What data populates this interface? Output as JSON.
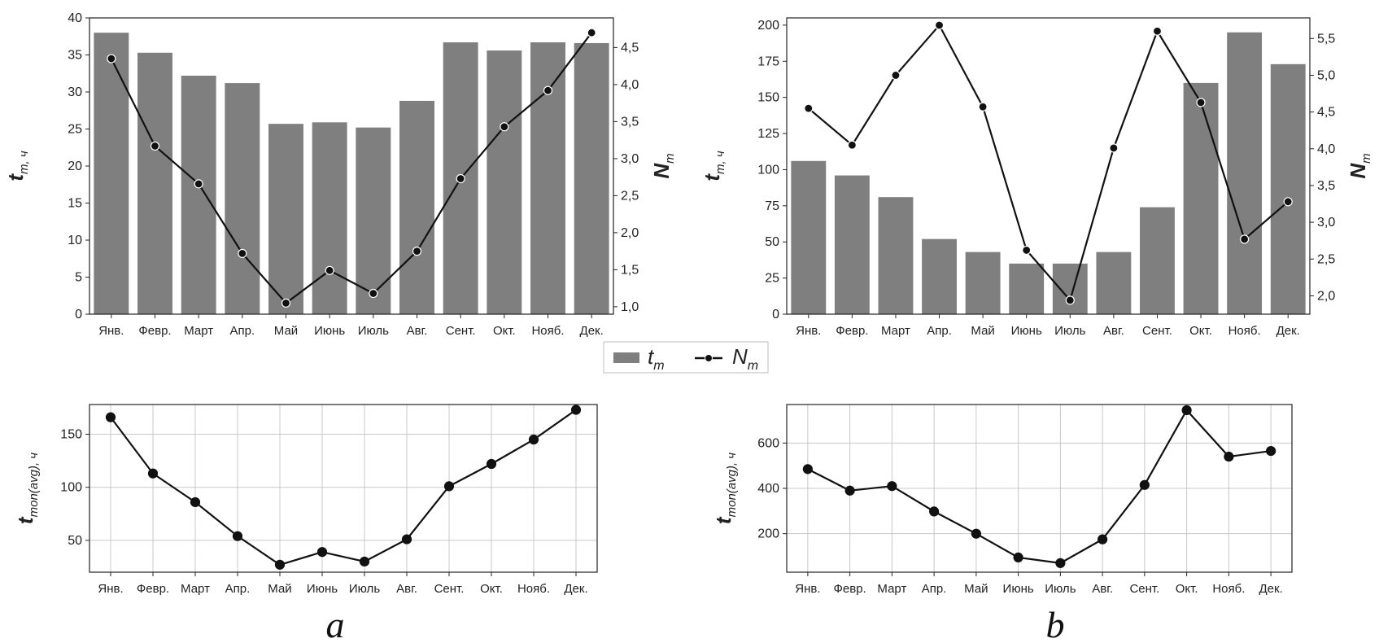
{
  "categories": [
    "Янв.",
    "Февр.",
    "Март",
    "Апр.",
    "Май",
    "Июнь",
    "Июль",
    "Авг.",
    "Сент.",
    "Окт.",
    "Нояб.",
    "Дек."
  ],
  "legend": {
    "bar_label": "t",
    "bar_sub": "m",
    "line_label": "N",
    "line_sub": "m"
  },
  "panel_letters": {
    "a": "a",
    "b": "b"
  },
  "colors": {
    "bar": "#7f7f7f",
    "line": "#111111",
    "grid": "#c8c8c8",
    "marker_edge": "#ffffff"
  },
  "chart_data": [
    {
      "id": "a-top",
      "type": "bar",
      "title": "",
      "ylabel": "t",
      "ylabel_sub": "m, ч",
      "y2label": "N",
      "y2label_sub": "m",
      "ylim": [
        0,
        40
      ],
      "yticks": [
        "0",
        "5",
        "10",
        "15",
        "20",
        "25",
        "30",
        "35",
        "40"
      ],
      "y2lim": [
        0.9,
        4.9
      ],
      "y2ticks": [
        "1,0",
        "1,5",
        "2,0",
        "2,5",
        "3,0",
        "3,5",
        "4,0",
        "4,5"
      ],
      "series": [
        {
          "name": "t_m",
          "type": "bar",
          "values": [
            38,
            35.3,
            32.2,
            31.2,
            25.7,
            25.9,
            25.2,
            28.8,
            36.7,
            35.6,
            36.7,
            36.6
          ]
        },
        {
          "name": "N_m",
          "type": "line",
          "values": [
            4.35,
            3.17,
            2.66,
            1.72,
            1.05,
            1.49,
            1.18,
            1.75,
            2.73,
            3.43,
            3.92,
            4.7
          ]
        }
      ],
      "grid": false
    },
    {
      "id": "b-top",
      "type": "bar",
      "title": "",
      "ylabel": "t",
      "ylabel_sub": "m, ч",
      "y2label": "N",
      "y2label_sub": "m",
      "ylim": [
        0,
        205
      ],
      "yticks": [
        "0",
        "25",
        "50",
        "75",
        "100",
        "125",
        "150",
        "175",
        "200"
      ],
      "y2lim": [
        1.75,
        5.78
      ],
      "y2ticks": [
        "2,0",
        "2,5",
        "3,0",
        "3,5",
        "4,0",
        "4,5",
        "5,0",
        "5,5"
      ],
      "series": [
        {
          "name": "t_m",
          "type": "bar",
          "values": [
            106,
            96,
            81,
            52,
            43,
            35,
            35,
            43,
            74,
            160,
            195,
            173
          ]
        },
        {
          "name": "N_m",
          "type": "line",
          "values": [
            4.55,
            4.05,
            5.0,
            5.68,
            4.57,
            2.62,
            1.94,
            4.01,
            5.6,
            4.63,
            2.77,
            3.28
          ]
        }
      ],
      "grid": false
    },
    {
      "id": "a-bottom",
      "type": "line",
      "title": "",
      "ylabel": "t",
      "ylabel_sub": "mon(avg), ч",
      "ylim": [
        20,
        178
      ],
      "yticks": [
        "50",
        "100",
        "150"
      ],
      "series": [
        {
          "name": "",
          "values": [
            166,
            113,
            86,
            54,
            27,
            39,
            30,
            51,
            101,
            122,
            145,
            173
          ]
        }
      ],
      "grid": true
    },
    {
      "id": "b-bottom",
      "type": "line",
      "title": "",
      "ylabel": "t",
      "ylabel_sub": "mon(avg), ч",
      "ylim": [
        30,
        770
      ],
      "yticks": [
        "200",
        "400",
        "600"
      ],
      "series": [
        {
          "name": "",
          "values": [
            485,
            390,
            410,
            298,
            200,
            95,
            70,
            175,
            415,
            745,
            540,
            565
          ]
        }
      ],
      "grid": true
    }
  ]
}
